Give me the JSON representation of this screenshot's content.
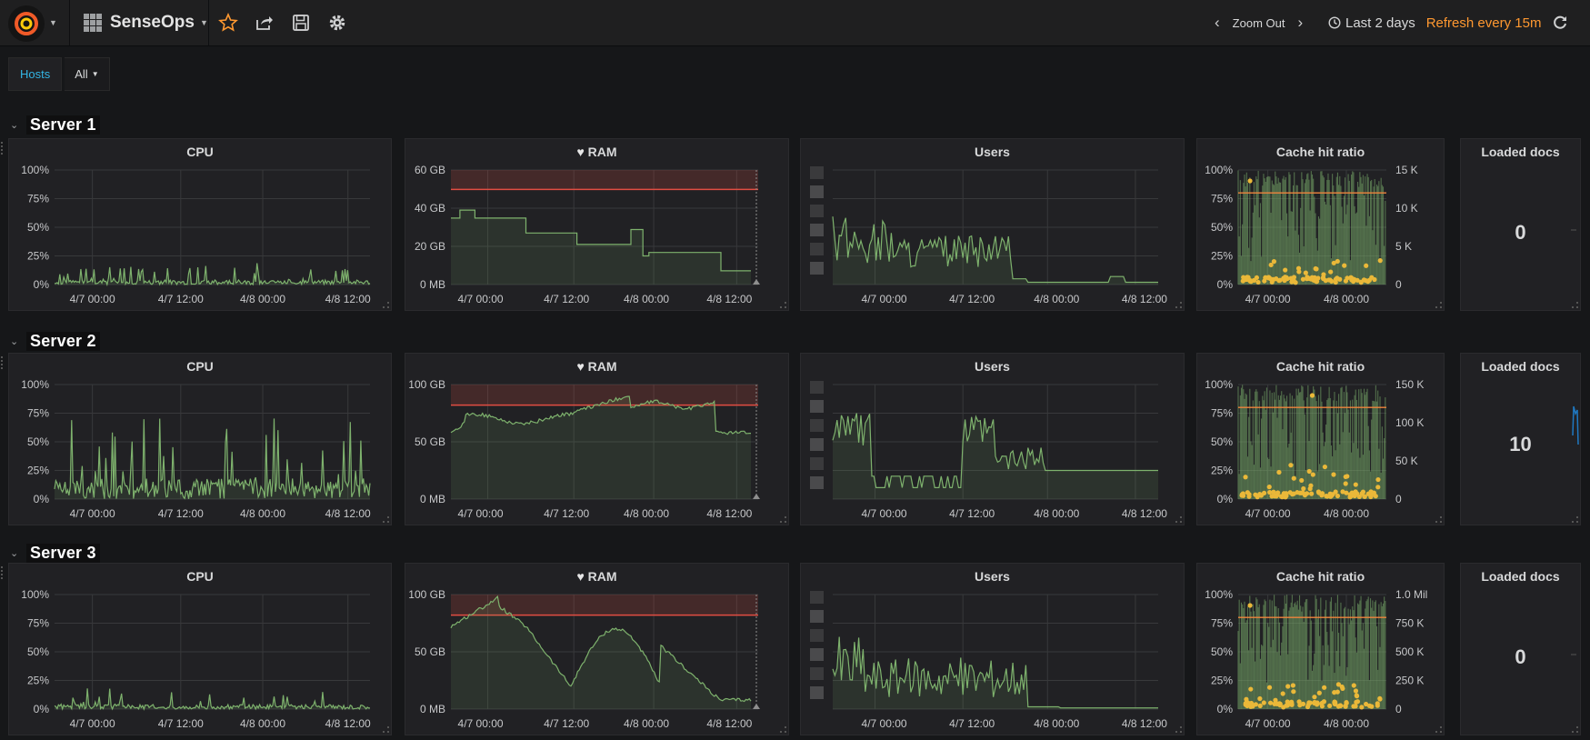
{
  "topbar": {
    "dashboard_title": "SenseOps",
    "zoom_out_label": "Zoom Out",
    "time_range_label": "Last 2 days",
    "refresh_label": "Refresh every 15m",
    "accent_color": "#ff9830"
  },
  "variables": {
    "hosts_label": "Hosts",
    "hosts_value": "All"
  },
  "x_ticks": [
    "4/7 00:00",
    "4/7 12:00",
    "4/8 00:00",
    "4/8 12:00"
  ],
  "cache_x_ticks": [
    "4/7 00:00",
    "4/8 00:00"
  ],
  "pct_ticks": [
    "100%",
    "75%",
    "50%",
    "25%",
    "0%"
  ],
  "rows": [
    {
      "title": "Server 1",
      "cpu": {
        "title": "CPU"
      },
      "ram": {
        "title": "RAM",
        "y_ticks": [
          "60 GB",
          "40 GB",
          "20 GB",
          "0 MB"
        ]
      },
      "users": {
        "title": "Users"
      },
      "cache": {
        "title": "Cache hit ratio",
        "right_ticks": [
          "15 K",
          "10 K",
          "5 K",
          "0"
        ]
      },
      "docs": {
        "title": "Loaded docs",
        "value": "0"
      }
    },
    {
      "title": "Server 2",
      "cpu": {
        "title": "CPU"
      },
      "ram": {
        "title": "RAM",
        "y_ticks": [
          "100 GB",
          "50 GB",
          "0 MB"
        ]
      },
      "users": {
        "title": "Users"
      },
      "cache": {
        "title": "Cache hit ratio",
        "right_ticks": [
          "150 K",
          "100 K",
          "50 K",
          "0"
        ]
      },
      "docs": {
        "title": "Loaded docs",
        "value": "10"
      }
    },
    {
      "title": "Server 3",
      "cpu": {
        "title": "CPU"
      },
      "ram": {
        "title": "RAM",
        "y_ticks": [
          "100 GB",
          "50 GB",
          "0 MB"
        ]
      },
      "users": {
        "title": "Users"
      },
      "cache": {
        "title": "Cache hit ratio",
        "right_ticks": [
          "1.0 Mil",
          "750 K",
          "500 K",
          "250 K",
          "0"
        ]
      },
      "docs": {
        "title": "Loaded docs",
        "value": "0"
      }
    }
  ],
  "colors": {
    "series_green": "#7eb26d",
    "threshold_red": "#e24d42",
    "points_yellow": "#eab839",
    "line_orange": "#ef843c",
    "sparkline_blue": "#1f78c1"
  }
}
